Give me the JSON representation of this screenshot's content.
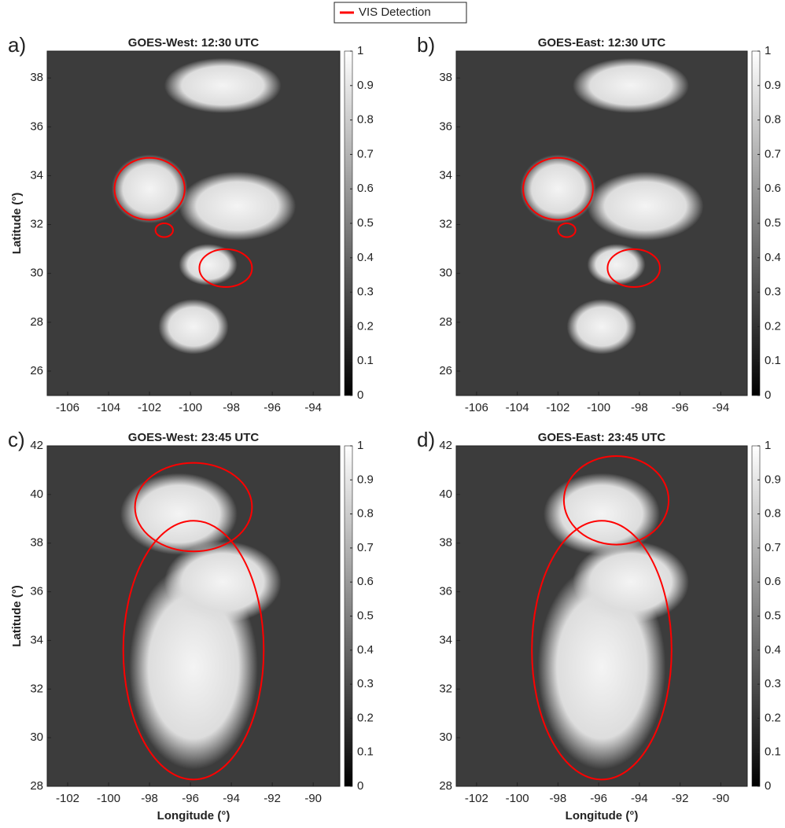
{
  "legend": {
    "label": "VIS Detection",
    "color": "#ff0000"
  },
  "chart_data": [
    {
      "type": "image",
      "panel_label": "a)",
      "title": "GOES-West: 12:30 UTC",
      "ylabel": "Latitude (°)",
      "xlim": [
        -107,
        -92.7
      ],
      "ylim": [
        25,
        39.1
      ],
      "xticks": [
        -106,
        -104,
        -102,
        -100,
        -98,
        -96,
        -94
      ],
      "yticks": [
        26,
        28,
        30,
        32,
        34,
        36,
        38
      ],
      "colorbar": {
        "lim": [
          0,
          1
        ],
        "ticks": [
          0,
          0.1,
          0.2,
          0.3,
          0.4,
          0.5,
          0.6,
          0.7,
          0.8,
          0.9,
          1
        ]
      }
    },
    {
      "type": "image",
      "panel_label": "b)",
      "title": "GOES-East: 12:30 UTC",
      "xlim": [
        -107,
        -92.7
      ],
      "ylim": [
        25,
        39.1
      ],
      "xticks": [
        -106,
        -104,
        -102,
        -100,
        -98,
        -96,
        -94
      ],
      "yticks": [
        26,
        28,
        30,
        32,
        34,
        36,
        38
      ],
      "colorbar": {
        "lim": [
          0,
          1
        ],
        "ticks": [
          0,
          0.1,
          0.2,
          0.3,
          0.4,
          0.5,
          0.6,
          0.7,
          0.8,
          0.9,
          1
        ]
      }
    },
    {
      "type": "image",
      "panel_label": "c)",
      "title": "GOES-West: 23:45 UTC",
      "ylabel": "Latitude (°)",
      "xlabel": "Longitude (°)",
      "xlim": [
        -103,
        -88.7
      ],
      "ylim": [
        28,
        42
      ],
      "xticks": [
        -102,
        -100,
        -98,
        -96,
        -94,
        -92,
        -90
      ],
      "yticks": [
        28,
        30,
        32,
        34,
        36,
        38,
        40,
        42
      ],
      "colorbar": {
        "lim": [
          0,
          1
        ],
        "ticks": [
          0,
          0.1,
          0.2,
          0.3,
          0.4,
          0.5,
          0.6,
          0.7,
          0.8,
          0.9,
          1
        ]
      }
    },
    {
      "type": "image",
      "panel_label": "d)",
      "title": "GOES-East: 23:45 UTC",
      "xlabel": "Longitude (°)",
      "xlim": [
        -103,
        -88.7
      ],
      "ylim": [
        28,
        42
      ],
      "xticks": [
        -102,
        -100,
        -98,
        -96,
        -94,
        -92,
        -90
      ],
      "yticks": [
        28,
        30,
        32,
        34,
        36,
        38,
        40,
        42
      ],
      "colorbar": {
        "lim": [
          0,
          1
        ],
        "ticks": [
          0,
          0.1,
          0.2,
          0.3,
          0.4,
          0.5,
          0.6,
          0.7,
          0.8,
          0.9,
          1
        ]
      }
    }
  ]
}
